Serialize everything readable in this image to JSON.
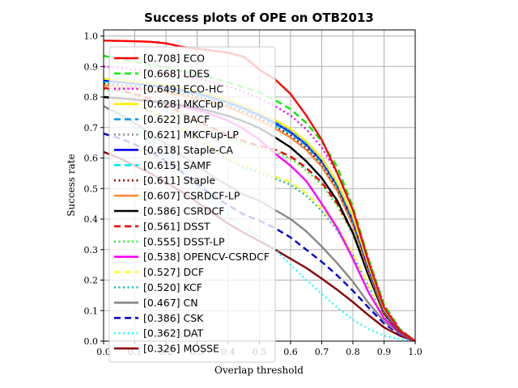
{
  "chart_data": {
    "type": "line",
    "title": "Success plots of OPE on OTB2013",
    "xlabel": "Overlap threshold",
    "ylabel": "Success rate",
    "xlim": [
      0,
      1
    ],
    "ylim": [
      0,
      1.02
    ],
    "xticks": [
      "0.0",
      "0.1",
      "0.2",
      "0.3",
      "0.4",
      "0.5",
      "0.6",
      "0.7",
      "0.8",
      "0.9",
      "1.0"
    ],
    "yticks": [
      "0.0",
      "0.1",
      "0.2",
      "0.3",
      "0.4",
      "0.5",
      "0.6",
      "0.7",
      "0.8",
      "0.9",
      "1.0"
    ],
    "grid": true,
    "legend_position": "top-left",
    "x": [
      0,
      0.05,
      0.1,
      0.15,
      0.2,
      0.25,
      0.3,
      0.35,
      0.4,
      0.45,
      0.5,
      0.55,
      0.6,
      0.65,
      0.7,
      0.75,
      0.8,
      0.85,
      0.9,
      0.95,
      1.0
    ],
    "series": [
      {
        "name": "[0.708] ECO",
        "color": "#ff0000",
        "dash": "solid",
        "values": [
          0.985,
          0.984,
          0.983,
          0.981,
          0.976,
          0.965,
          0.958,
          0.952,
          0.945,
          0.932,
          0.89,
          0.858,
          0.81,
          0.74,
          0.66,
          0.55,
          0.43,
          0.26,
          0.11,
          0.035,
          0.0
        ]
      },
      {
        "name": "[0.668] LDES",
        "color": "#00ee00",
        "dash": "dashed",
        "values": [
          0.935,
          0.925,
          0.915,
          0.906,
          0.898,
          0.886,
          0.875,
          0.862,
          0.848,
          0.832,
          0.815,
          0.79,
          0.76,
          0.715,
          0.655,
          0.57,
          0.44,
          0.27,
          0.12,
          0.04,
          0.0
        ]
      },
      {
        "name": "[0.649] ECO-HC",
        "color": "#ee00ee",
        "dash": "dotted",
        "values": [
          0.9,
          0.895,
          0.89,
          0.885,
          0.878,
          0.87,
          0.86,
          0.848,
          0.835,
          0.818,
          0.795,
          0.77,
          0.74,
          0.695,
          0.635,
          0.55,
          0.43,
          0.27,
          0.12,
          0.04,
          0.0
        ]
      },
      {
        "name": "[0.628] MKCFup",
        "color": "#ffee00",
        "dash": "solid",
        "values": [
          0.86,
          0.855,
          0.85,
          0.845,
          0.838,
          0.83,
          0.82,
          0.806,
          0.79,
          0.772,
          0.75,
          0.725,
          0.695,
          0.655,
          0.6,
          0.52,
          0.41,
          0.25,
          0.105,
          0.035,
          0.0
        ]
      },
      {
        "name": "[0.622] BACF",
        "color": "#1199ee",
        "dash": "dashed",
        "values": [
          0.86,
          0.854,
          0.848,
          0.842,
          0.835,
          0.826,
          0.815,
          0.801,
          0.785,
          0.766,
          0.744,
          0.72,
          0.69,
          0.65,
          0.595,
          0.515,
          0.4,
          0.245,
          0.105,
          0.035,
          0.0
        ]
      },
      {
        "name": "[0.621] MKCFup-LP",
        "color": "#888888",
        "dash": "dotted",
        "values": [
          0.86,
          0.854,
          0.848,
          0.841,
          0.834,
          0.825,
          0.814,
          0.8,
          0.784,
          0.765,
          0.743,
          0.718,
          0.688,
          0.648,
          0.593,
          0.513,
          0.4,
          0.245,
          0.105,
          0.035,
          0.0
        ]
      },
      {
        "name": "[0.618] Staple-CA",
        "color": "#0000ff",
        "dash": "solid",
        "values": [
          0.855,
          0.85,
          0.845,
          0.839,
          0.832,
          0.823,
          0.812,
          0.798,
          0.782,
          0.763,
          0.74,
          0.715,
          0.685,
          0.645,
          0.59,
          0.51,
          0.395,
          0.24,
          0.1,
          0.033,
          0.0
        ]
      },
      {
        "name": "[0.615] SAMF",
        "color": "#00eeee",
        "dash": "dashed",
        "values": [
          0.85,
          0.845,
          0.84,
          0.834,
          0.827,
          0.818,
          0.807,
          0.793,
          0.777,
          0.758,
          0.736,
          0.71,
          0.68,
          0.64,
          0.585,
          0.505,
          0.392,
          0.238,
          0.1,
          0.033,
          0.0
        ]
      },
      {
        "name": "[0.611] Staple",
        "color": "#880000",
        "dash": "dotted",
        "values": [
          0.845,
          0.84,
          0.835,
          0.829,
          0.822,
          0.813,
          0.802,
          0.788,
          0.772,
          0.752,
          0.73,
          0.705,
          0.675,
          0.635,
          0.58,
          0.5,
          0.388,
          0.235,
          0.098,
          0.032,
          0.0
        ]
      },
      {
        "name": "[0.607] CSRDCF-LP",
        "color": "#ff8833",
        "dash": "solid",
        "values": [
          0.838,
          0.833,
          0.828,
          0.822,
          0.815,
          0.806,
          0.795,
          0.781,
          0.765,
          0.745,
          0.722,
          0.697,
          0.667,
          0.627,
          0.572,
          0.492,
          0.38,
          0.23,
          0.095,
          0.031,
          0.0
        ]
      },
      {
        "name": "[0.586] CSRDCF",
        "color": "#000000",
        "dash": "solid",
        "values": [
          0.8,
          0.796,
          0.792,
          0.787,
          0.781,
          0.773,
          0.764,
          0.752,
          0.738,
          0.72,
          0.698,
          0.668,
          0.635,
          0.59,
          0.535,
          0.46,
          0.355,
          0.215,
          0.09,
          0.03,
          0.0
        ]
      },
      {
        "name": "[0.561] DSST",
        "color": "#ee0000",
        "dash": "dashed",
        "values": [
          0.83,
          0.822,
          0.81,
          0.795,
          0.775,
          0.748,
          0.722,
          0.698,
          0.675,
          0.655,
          0.64,
          0.628,
          0.605,
          0.568,
          0.52,
          0.45,
          0.355,
          0.22,
          0.095,
          0.032,
          0.0
        ]
      },
      {
        "name": "[0.555] DSST-LP",
        "color": "#33ee33",
        "dash": "dotted",
        "values": [
          0.825,
          0.817,
          0.805,
          0.79,
          0.77,
          0.743,
          0.717,
          0.692,
          0.668,
          0.648,
          0.632,
          0.62,
          0.598,
          0.56,
          0.512,
          0.442,
          0.35,
          0.215,
          0.093,
          0.031,
          0.0
        ]
      },
      {
        "name": "[0.538] OPENCV-CSRDCF",
        "color": "#ff00ff",
        "dash": "solid",
        "values": [
          0.8,
          0.796,
          0.791,
          0.785,
          0.778,
          0.769,
          0.758,
          0.742,
          0.722,
          0.695,
          0.66,
          0.615,
          0.575,
          0.525,
          0.45,
          0.37,
          0.27,
          0.16,
          0.075,
          0.028,
          0.0
        ]
      },
      {
        "name": "[0.527] DCF",
        "color": "#ffff33",
        "dash": "dashed",
        "values": [
          0.8,
          0.79,
          0.775,
          0.755,
          0.73,
          0.7,
          0.665,
          0.63,
          0.6,
          0.575,
          0.56,
          0.54,
          0.52,
          0.485,
          0.435,
          0.37,
          0.29,
          0.185,
          0.085,
          0.03,
          0.0
        ]
      },
      {
        "name": "[0.520] KCF",
        "color": "#11bbbb",
        "dash": "dotted",
        "values": [
          0.8,
          0.788,
          0.772,
          0.752,
          0.727,
          0.697,
          0.662,
          0.626,
          0.595,
          0.57,
          0.553,
          0.533,
          0.512,
          0.477,
          0.427,
          0.362,
          0.283,
          0.18,
          0.082,
          0.029,
          0.0
        ]
      },
      {
        "name": "[0.467] CN",
        "color": "#888888",
        "dash": "solid",
        "values": [
          0.77,
          0.745,
          0.715,
          0.68,
          0.645,
          0.61,
          0.575,
          0.54,
          0.51,
          0.48,
          0.46,
          0.43,
          0.4,
          0.36,
          0.31,
          0.255,
          0.195,
          0.125,
          0.065,
          0.025,
          0.0
        ]
      },
      {
        "name": "[0.386] CSK",
        "color": "#0000cc",
        "dash": "dashed",
        "values": [
          0.68,
          0.665,
          0.645,
          0.62,
          0.59,
          0.555,
          0.515,
          0.478,
          0.445,
          0.415,
          0.395,
          0.37,
          0.34,
          0.3,
          0.26,
          0.215,
          0.165,
          0.11,
          0.058,
          0.022,
          0.0
        ]
      },
      {
        "name": "[0.362] DAT",
        "color": "#22ffff",
        "dash": "dotted",
        "values": [
          0.77,
          0.74,
          0.7,
          0.655,
          0.61,
          0.56,
          0.51,
          0.46,
          0.41,
          0.37,
          0.34,
          0.3,
          0.25,
          0.2,
          0.155,
          0.11,
          0.07,
          0.04,
          0.018,
          0.007,
          0.0
        ]
      },
      {
        "name": "[0.326] MOSSE",
        "color": "#880000",
        "dash": "solid",
        "values": [
          0.62,
          0.6,
          0.575,
          0.55,
          0.52,
          0.49,
          0.455,
          0.42,
          0.385,
          0.355,
          0.328,
          0.3,
          0.27,
          0.24,
          0.205,
          0.168,
          0.128,
          0.085,
          0.045,
          0.018,
          0.0
        ]
      }
    ]
  }
}
